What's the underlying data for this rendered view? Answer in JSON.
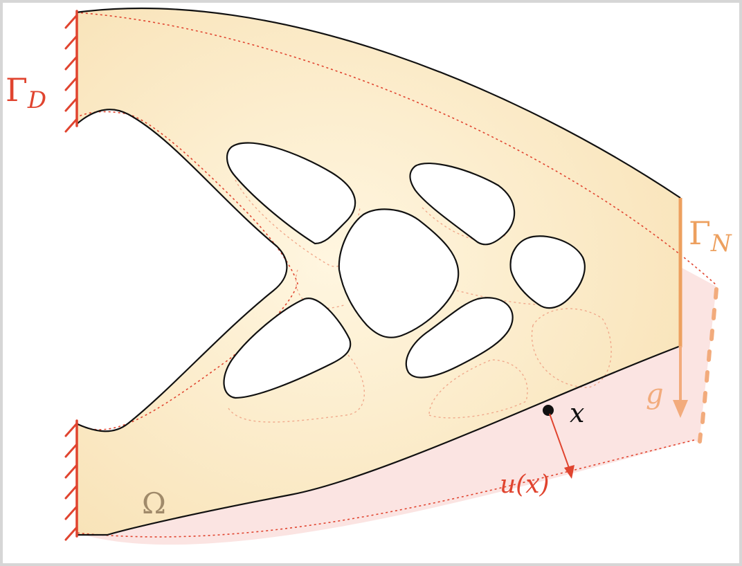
{
  "labels": {
    "dirichlet_main": "Γ",
    "dirichlet_sub": "D",
    "neumann_main": "Γ",
    "neumann_sub": "N",
    "load": "g",
    "point": "x",
    "displacement": "u(x)",
    "domain": "Ω"
  },
  "colors": {
    "domain_fill": "#fbe8c4",
    "deformed_fill": "#fbe4e2",
    "boundary_dirichlet": "#e0442f",
    "boundary_neumann": "#eda05f",
    "load_arrow": "#f2ab7c",
    "displacement_arrow": "#e0442f",
    "outline": "#111111",
    "dashed": "#e0442f"
  }
}
